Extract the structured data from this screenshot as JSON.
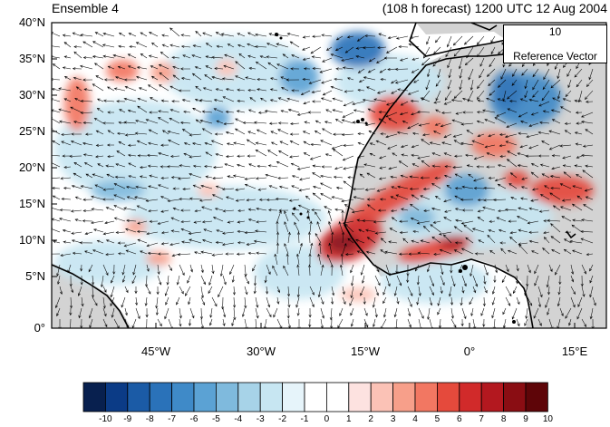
{
  "header": {
    "left_title": "Ensemble 4",
    "right_title": "(108 h forecast) 1200 UTC 12 Aug 2004"
  },
  "lat_ticks": [
    "40°N",
    "35°N",
    "30°N",
    "25°N",
    "20°N",
    "15°N",
    "10°N",
    "5°N",
    "0°"
  ],
  "lon_ticks": [
    "45°W",
    "30°W",
    "15°W",
    "0°",
    "15°E"
  ],
  "reference_vector": {
    "magnitude": "10",
    "label": "Reference Vector"
  },
  "colorbar": {
    "labels": [
      "-10",
      "-9",
      "-8",
      "-7",
      "-6",
      "-5",
      "-4",
      "-3",
      "-2",
      "-1",
      "0",
      "1",
      "2",
      "3",
      "4",
      "5",
      "6",
      "7",
      "8",
      "9",
      "10"
    ],
    "colors": [
      "#08204f",
      "#0b3b86",
      "#1b5ba6",
      "#2a72b9",
      "#3f8ac8",
      "#5ba2d4",
      "#7fbadd",
      "#a7d3e8",
      "#c7e6f2",
      "#e6f4fa",
      "#ffffff",
      "#ffffff",
      "#fde2e0",
      "#fbc2b6",
      "#f79f8a",
      "#f27762",
      "#e54a3c",
      "#d12a2a",
      "#b3181f",
      "#8a0d13",
      "#5e0508"
    ]
  },
  "map": {
    "land_color": "#d3d3d3",
    "coast_color": "#000000",
    "vector_color": "#000000"
  }
}
